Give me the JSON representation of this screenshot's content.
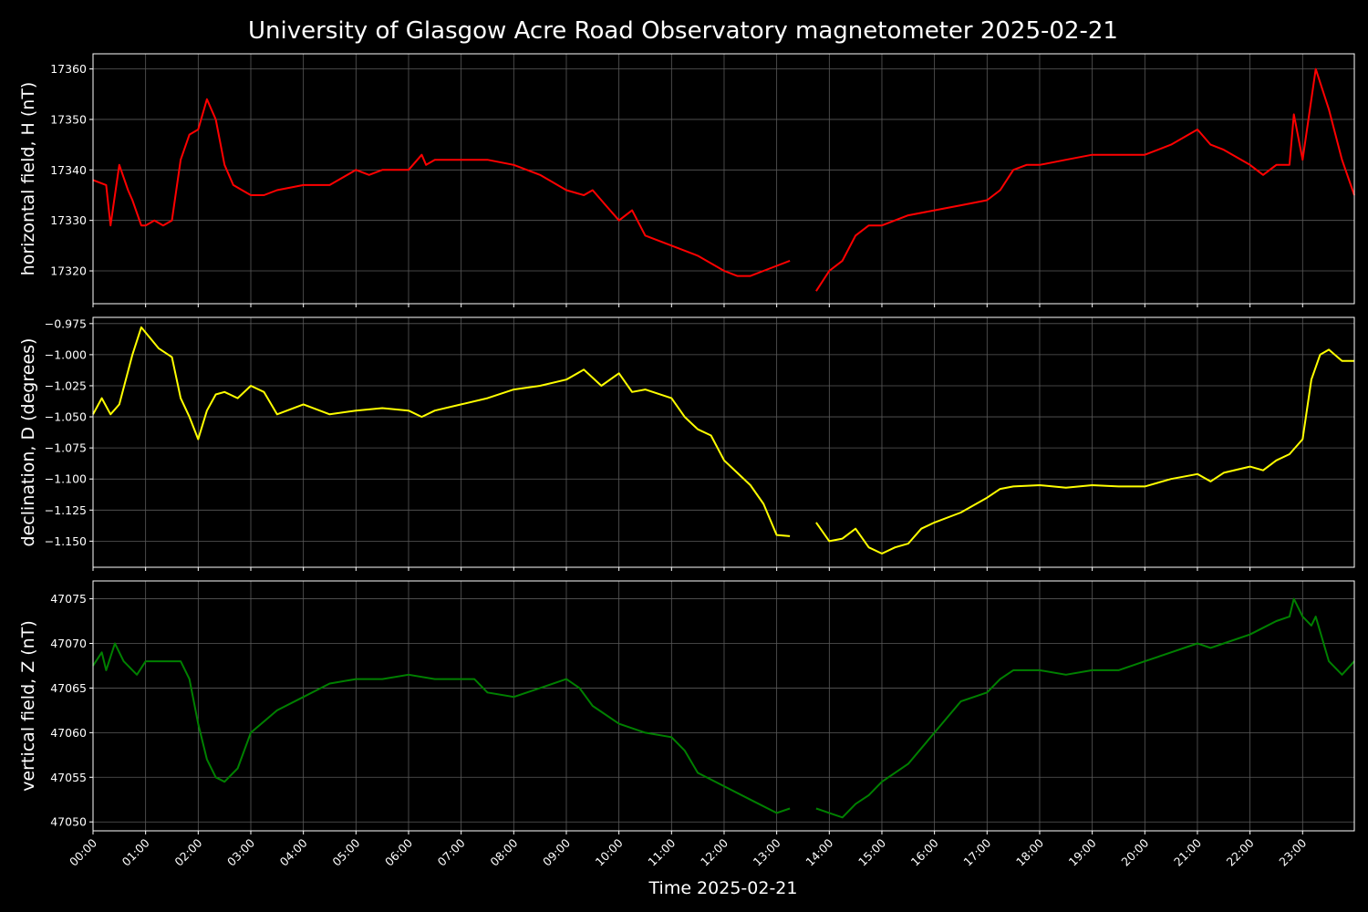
{
  "chart_data": {
    "type": "line",
    "title": "University of Glasgow Acre Road Observatory magnetometer 2025-02-21",
    "xlabel": "Time 2025-02-21",
    "x_ticks": [
      "00:00",
      "01:00",
      "02:00",
      "03:00",
      "04:00",
      "05:00",
      "06:00",
      "07:00",
      "08:00",
      "09:00",
      "10:00",
      "11:00",
      "12:00",
      "13:00",
      "14:00",
      "15:00",
      "16:00",
      "17:00",
      "18:00",
      "19:00",
      "20:00",
      "21:00",
      "22:00",
      "23:00"
    ],
    "xlim": [
      "00:00",
      "23:59"
    ],
    "grid": true,
    "background": "#000000",
    "panels": [
      {
        "ylabel": "horizontal field, H (nT)",
        "color": "#ff0000",
        "ylim": [
          17313.5,
          17363
        ],
        "yticks": [
          17320,
          17330,
          17340,
          17350,
          17360
        ],
        "ytick_labels": [
          "17320",
          "17330",
          "17340",
          "17350",
          "17360"
        ],
        "series": [
          {
            "x": [
              "00:00",
              "00:15",
              "00:20",
              "00:25",
              "00:30",
              "00:40",
              "00:45",
              "00:55",
              "01:00",
              "01:10",
              "01:20",
              "01:30",
              "01:40",
              "01:50",
              "02:00",
              "02:10",
              "02:20",
              "02:30",
              "02:40",
              "02:50",
              "03:00",
              "03:15",
              "03:30",
              "04:00",
              "04:30",
              "05:00",
              "05:15",
              "05:30",
              "06:00",
              "06:15",
              "06:20",
              "06:30",
              "07:00",
              "07:30",
              "08:00",
              "08:30",
              "09:00",
              "09:20",
              "09:30",
              "09:45",
              "10:00",
              "10:15",
              "10:30",
              "11:00",
              "11:30",
              "12:00",
              "12:15",
              "12:30",
              "12:45",
              "13:00",
              "13:15"
            ],
            "y": [
              17338,
              17337,
              17329,
              17335,
              17341,
              17336,
              17334,
              17329,
              17329,
              17330,
              17329,
              17330,
              17342,
              17347,
              17348,
              17354,
              17350,
              17341,
              17337,
              17336,
              17335,
              17335,
              17336,
              17337,
              17337,
              17340,
              17339,
              17340,
              17340,
              17343,
              17341,
              17342,
              17342,
              17342,
              17341,
              17339,
              17336,
              17335,
              17336,
              17333,
              17330,
              17332,
              17327,
              17325,
              17323,
              17320,
              17319,
              17319,
              17320,
              17321,
              17322
            ]
          },
          {
            "x": [
              "13:45",
              "14:00",
              "14:15",
              "14:30",
              "14:45",
              "15:00",
              "15:30",
              "16:00",
              "16:30",
              "17:00",
              "17:15",
              "17:30",
              "17:45",
              "18:00",
              "18:30",
              "19:00",
              "19:30",
              "20:00",
              "20:30",
              "21:00",
              "21:15",
              "21:30",
              "22:00",
              "22:15",
              "22:30",
              "22:45",
              "22:50",
              "23:00",
              "23:15",
              "23:30",
              "23:45",
              "23:59"
            ],
            "y": [
              17316,
              17320,
              17322,
              17327,
              17329,
              17329,
              17331,
              17332,
              17333,
              17334,
              17336,
              17340,
              17341,
              17341,
              17342,
              17343,
              17343,
              17343,
              17345,
              17348,
              17345,
              17344,
              17341,
              17339,
              17341,
              17341,
              17351,
              17342,
              17360,
              17352,
              17342,
              17335
            ]
          }
        ]
      },
      {
        "ylabel": "declination, D (degrees)",
        "color": "#ffff00",
        "ylim": [
          -1.171,
          -0.97
        ],
        "yticks": [
          -0.975,
          -1.0,
          -1.025,
          -1.05,
          -1.075,
          -1.1,
          -1.125,
          -1.15
        ],
        "ytick_labels": [
          "−0.975",
          "−1.000",
          "−1.025",
          "−1.050",
          "−1.075",
          "−1.100",
          "−1.125",
          "−1.150"
        ],
        "series": [
          {
            "x": [
              "00:00",
              "00:10",
              "00:20",
              "00:30",
              "00:45",
              "00:55",
              "01:15",
              "01:30",
              "01:40",
              "01:50",
              "02:00",
              "02:10",
              "02:20",
              "02:30",
              "02:45",
              "03:00",
              "03:15",
              "03:30",
              "04:00",
              "04:30",
              "05:00",
              "05:30",
              "06:00",
              "06:15",
              "06:30",
              "07:00",
              "07:30",
              "08:00",
              "08:30",
              "09:00",
              "09:20",
              "09:40",
              "10:00",
              "10:15",
              "10:30",
              "11:00",
              "11:15",
              "11:30",
              "11:45",
              "12:00",
              "12:15",
              "12:30",
              "12:45",
              "13:00",
              "13:15"
            ],
            "y": [
              -1.048,
              -1.035,
              -1.048,
              -1.04,
              -1.0,
              -0.978,
              -0.995,
              -1.002,
              -1.035,
              -1.05,
              -1.068,
              -1.045,
              -1.032,
              -1.03,
              -1.035,
              -1.025,
              -1.03,
              -1.048,
              -1.04,
              -1.048,
              -1.045,
              -1.043,
              -1.045,
              -1.05,
              -1.045,
              -1.04,
              -1.035,
              -1.028,
              -1.025,
              -1.02,
              -1.012,
              -1.025,
              -1.015,
              -1.03,
              -1.028,
              -1.035,
              -1.05,
              -1.06,
              -1.065,
              -1.085,
              -1.095,
              -1.105,
              -1.12,
              -1.145,
              -1.146
            ]
          },
          {
            "x": [
              "13:45",
              "14:00",
              "14:15",
              "14:30",
              "14:45",
              "15:00",
              "15:15",
              "15:30",
              "15:45",
              "16:00",
              "16:30",
              "17:00",
              "17:15",
              "17:30",
              "18:00",
              "18:30",
              "19:00",
              "19:30",
              "20:00",
              "20:30",
              "21:00",
              "21:15",
              "21:30",
              "22:00",
              "22:15",
              "22:30",
              "22:45",
              "23:00",
              "23:10",
              "23:20",
              "23:30",
              "23:45",
              "23:59"
            ],
            "y": [
              -1.135,
              -1.15,
              -1.148,
              -1.14,
              -1.155,
              -1.16,
              -1.155,
              -1.152,
              -1.14,
              -1.135,
              -1.127,
              -1.115,
              -1.108,
              -1.106,
              -1.105,
              -1.107,
              -1.105,
              -1.106,
              -1.106,
              -1.1,
              -1.096,
              -1.102,
              -1.095,
              -1.09,
              -1.093,
              -1.085,
              -1.08,
              -1.068,
              -1.02,
              -1.0,
              -0.996,
              -1.005,
              -1.005
            ]
          }
        ]
      },
      {
        "ylabel": "vertical field, Z (nT)",
        "color": "#008000",
        "ylim": [
          47049,
          47077
        ],
        "yticks": [
          47050,
          47055,
          47060,
          47065,
          47070,
          47075
        ],
        "ytick_labels": [
          "47050",
          "47055",
          "47060",
          "47065",
          "47070",
          "47075"
        ],
        "series": [
          {
            "x": [
              "00:00",
              "00:10",
              "00:15",
              "00:25",
              "00:35",
              "00:50",
              "01:00",
              "01:20",
              "01:40",
              "01:50",
              "02:00",
              "02:10",
              "02:20",
              "02:30",
              "02:45",
              "03:00",
              "03:30",
              "04:00",
              "04:30",
              "05:00",
              "05:30",
              "06:00",
              "06:30",
              "07:00",
              "07:15",
              "07:30",
              "08:00",
              "08:30",
              "09:00",
              "09:15",
              "09:30",
              "10:00",
              "10:30",
              "11:00",
              "11:15",
              "11:30",
              "12:00",
              "12:30",
              "13:00",
              "13:15"
            ],
            "y": [
              47067.5,
              47069,
              47067,
              47070,
              47068,
              47066.5,
              47068,
              47068,
              47068,
              47066,
              47061,
              47057,
              47055,
              47054.5,
              47056,
              47060,
              47062.5,
              47064,
              47065.5,
              47066,
              47066,
              47066.5,
              47066,
              47066,
              47066,
              47064.5,
              47064,
              47065,
              47066,
              47065,
              47063,
              47061,
              47060,
              47059.5,
              47058,
              47055.5,
              47054,
              47052.5,
              47051,
              47051.5
            ]
          },
          {
            "x": [
              "13:45",
              "14:00",
              "14:15",
              "14:30",
              "14:45",
              "15:00",
              "15:30",
              "16:00",
              "16:30",
              "17:00",
              "17:15",
              "17:30",
              "18:00",
              "18:30",
              "19:00",
              "19:30",
              "20:00",
              "20:30",
              "21:00",
              "21:15",
              "21:30",
              "22:00",
              "22:30",
              "22:45",
              "22:50",
              "23:00",
              "23:10",
              "23:15",
              "23:30",
              "23:45",
              "23:59"
            ],
            "y": [
              47051.5,
              47051,
              47050.5,
              47052,
              47053,
              47054.5,
              47056.5,
              47060,
              47063.5,
              47064.5,
              47066,
              47067,
              47067,
              47066.5,
              47067,
              47067,
              47068,
              47069,
              47070,
              47069.5,
              47070,
              47071,
              47072.5,
              47073,
              47075,
              47073,
              47072,
              47073,
              47068,
              47066.5,
              47068
            ]
          }
        ]
      }
    ]
  }
}
